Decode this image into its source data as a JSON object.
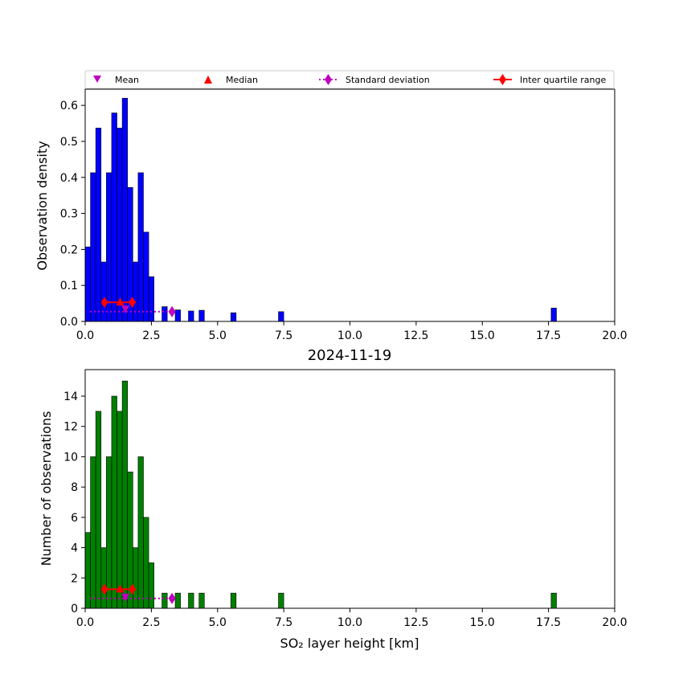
{
  "legend": {
    "entries": [
      {
        "label": "Mean",
        "marker": "triangle-down",
        "color": "#bf00bf"
      },
      {
        "label": "Median",
        "marker": "triangle-up",
        "color": "#ff0000"
      },
      {
        "label": "Standard deviation",
        "marker": "diamond-dotted-line",
        "color": "#bf00bf"
      },
      {
        "label": "Inter quartile range",
        "marker": "diamond-solid-line",
        "color": "#ff0000"
      }
    ]
  },
  "chart_data": [
    {
      "type": "bar",
      "title": "",
      "xlabel": "",
      "ylabel": "Observation density",
      "xlim": [
        0,
        20
      ],
      "ylim": [
        0,
        0.645
      ],
      "xticks": [
        "0.0",
        "2.5",
        "5.0",
        "7.5",
        "10.0",
        "12.5",
        "15.0",
        "17.5",
        "20.0"
      ],
      "yticks": [
        "0.0",
        "0.1",
        "0.2",
        "0.3",
        "0.4",
        "0.5",
        "0.6"
      ],
      "bar_color": "#0000ff",
      "bin_width": 0.2,
      "bins": [
        {
          "x": 0.0,
          "y": 0.207
        },
        {
          "x": 0.2,
          "y": 0.413
        },
        {
          "x": 0.4,
          "y": 0.537
        },
        {
          "x": 0.6,
          "y": 0.165
        },
        {
          "x": 0.8,
          "y": 0.413
        },
        {
          "x": 1.0,
          "y": 0.579
        },
        {
          "x": 1.2,
          "y": 0.537
        },
        {
          "x": 1.4,
          "y": 0.62
        },
        {
          "x": 1.6,
          "y": 0.372
        },
        {
          "x": 1.8,
          "y": 0.165
        },
        {
          "x": 2.0,
          "y": 0.413
        },
        {
          "x": 2.2,
          "y": 0.248
        },
        {
          "x": 2.4,
          "y": 0.124
        },
        {
          "x": 2.9,
          "y": 0.041
        },
        {
          "x": 3.4,
          "y": 0.032
        },
        {
          "x": 3.9,
          "y": 0.029
        },
        {
          "x": 4.3,
          "y": 0.031
        },
        {
          "x": 5.5,
          "y": 0.024
        },
        {
          "x": 7.3,
          "y": 0.027
        },
        {
          "x": 17.6,
          "y": 0.037
        }
      ],
      "stats": {
        "mean": 1.52,
        "median": 1.32,
        "q1": 0.73,
        "q3": 1.78,
        "sd_high": 3.28,
        "sd_low": 0.18,
        "marker_y_med": 0.053,
        "marker_y_mean": 0.033,
        "marker_y_sd": 0.027
      }
    },
    {
      "type": "bar",
      "title": "2024-11-19",
      "xlabel": "SO₂ layer height [km]",
      "ylabel": "Number of observations",
      "xlim": [
        0,
        20
      ],
      "ylim": [
        0,
        15.75
      ],
      "xticks": [
        "0.0",
        "2.5",
        "5.0",
        "7.5",
        "10.0",
        "12.5",
        "15.0",
        "17.5",
        "20.0"
      ],
      "yticks": [
        "0",
        "2",
        "4",
        "6",
        "8",
        "10",
        "12",
        "14"
      ],
      "bar_color": "#008000",
      "bin_width": 0.2,
      "bins": [
        {
          "x": 0.0,
          "y": 5
        },
        {
          "x": 0.2,
          "y": 10
        },
        {
          "x": 0.4,
          "y": 13
        },
        {
          "x": 0.6,
          "y": 4
        },
        {
          "x": 0.8,
          "y": 10
        },
        {
          "x": 1.0,
          "y": 14
        },
        {
          "x": 1.2,
          "y": 13
        },
        {
          "x": 1.4,
          "y": 15
        },
        {
          "x": 1.6,
          "y": 9
        },
        {
          "x": 1.8,
          "y": 4
        },
        {
          "x": 2.0,
          "y": 10
        },
        {
          "x": 2.2,
          "y": 6
        },
        {
          "x": 2.4,
          "y": 3
        },
        {
          "x": 2.9,
          "y": 1
        },
        {
          "x": 3.4,
          "y": 1
        },
        {
          "x": 3.9,
          "y": 1
        },
        {
          "x": 4.3,
          "y": 1
        },
        {
          "x": 5.5,
          "y": 1
        },
        {
          "x": 7.3,
          "y": 1
        },
        {
          "x": 17.6,
          "y": 1
        }
      ],
      "stats": {
        "mean": 1.52,
        "median": 1.32,
        "q1": 0.73,
        "q3": 1.78,
        "sd_high": 3.28,
        "sd_low": 0.18,
        "marker_y_med": 1.25,
        "marker_y_mean": 0.7,
        "marker_y_sd": 0.65
      }
    }
  ]
}
